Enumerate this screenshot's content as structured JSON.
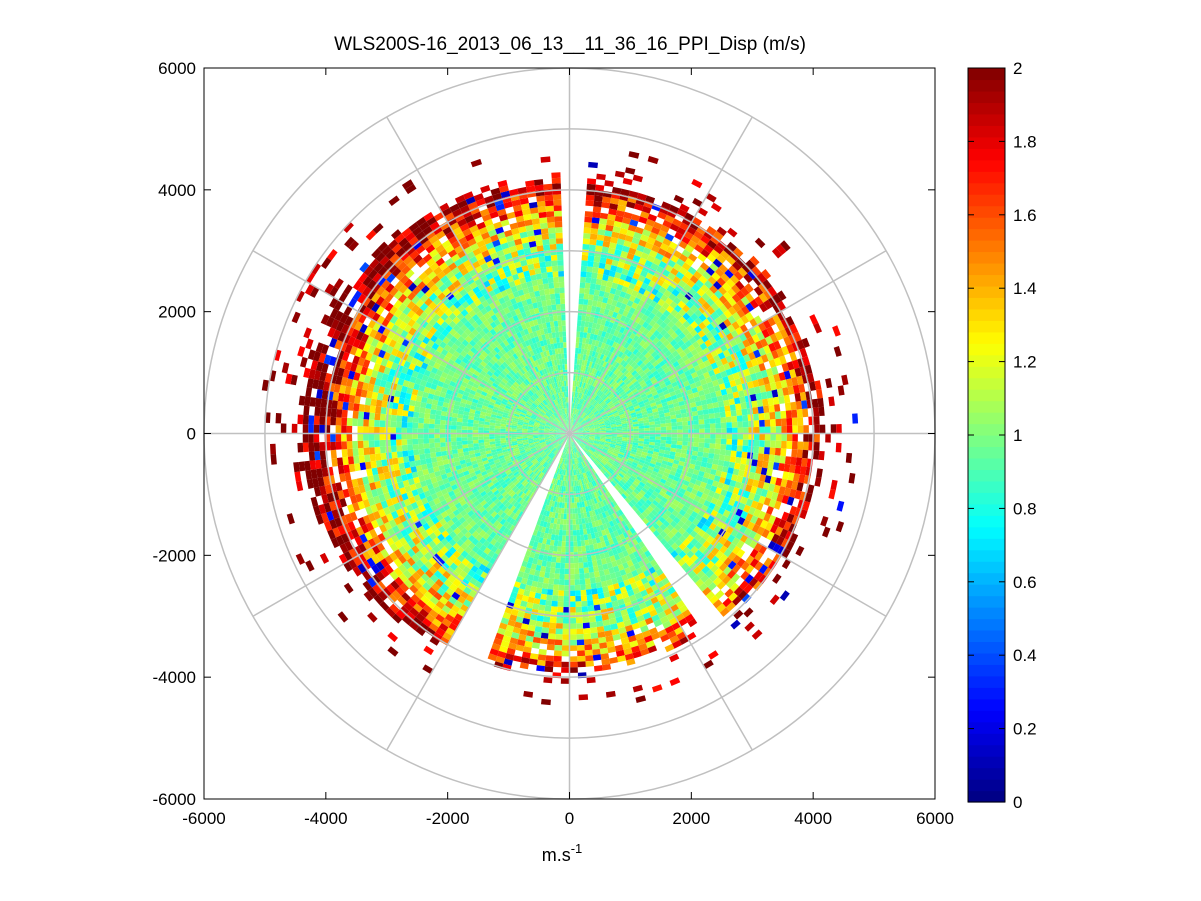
{
  "chart_data": {
    "type": "heatmap",
    "subtype": "polar-ppi-scan",
    "title": "WLS200S-16_2013_06_13__11_36_16_PPI_Disp (m/s)",
    "xlabel": "m.s",
    "xlabel_superscript": "-1",
    "ylabel": "",
    "xlim": [
      -6000,
      6000
    ],
    "ylim": [
      -6000,
      6000
    ],
    "xticks": [
      -6000,
      -4000,
      -2000,
      0,
      2000,
      4000,
      6000
    ],
    "yticks": [
      -6000,
      -4000,
      -2000,
      0,
      2000,
      4000,
      6000
    ],
    "xtick_labels": [
      "-6000",
      "-4000",
      "-2000",
      "0",
      "2000",
      "4000",
      "6000"
    ],
    "ytick_labels": [
      "-6000",
      "-4000",
      "-2000",
      "0",
      "2000",
      "4000",
      "6000"
    ],
    "polar_grid": {
      "rings": [
        1000,
        2000,
        3000,
        4000,
        5000,
        6000
      ],
      "spoke_step_deg": 30
    },
    "scan": {
      "max_range": 4200,
      "range_gate": 90,
      "azimuth_step_deg": 2,
      "gaps_deg": [
        [
          -2,
          3
        ],
        [
          140,
          146
        ],
        [
          201,
          208
        ],
        [
          206,
          209
        ]
      ]
    },
    "colorbar": {
      "colormap": "jet",
      "clim": [
        0,
        2
      ],
      "ticks": [
        0,
        0.2,
        0.4,
        0.6,
        0.8,
        1,
        1.2,
        1.4,
        1.6,
        1.8,
        2
      ],
      "tick_labels": [
        "0",
        "0.2",
        "0.4",
        "0.6",
        "0.8",
        "1",
        "1.2",
        "1.4",
        "1.6",
        "1.8",
        "2"
      ]
    },
    "value_profile": [
      {
        "range": 0,
        "value": 0.95
      },
      {
        "range": 2000,
        "value": 0.95
      },
      {
        "range": 2700,
        "value": 1.0
      },
      {
        "range": 3200,
        "value": 1.15
      },
      {
        "range": 3600,
        "value": 1.45
      },
      {
        "range": 3900,
        "value": 1.8
      },
      {
        "range": 4200,
        "value": 2.0
      }
    ]
  }
}
